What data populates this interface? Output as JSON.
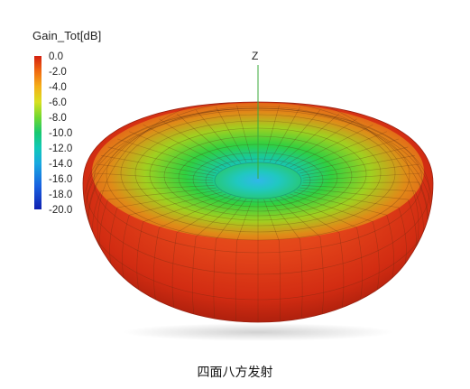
{
  "legend": {
    "title": "Gain_Tot[dB]",
    "ticks": [
      "0.0",
      "-2.0",
      "-4.0",
      "-6.0",
      "-8.0",
      "-10.0",
      "-12.0",
      "-14.0",
      "-16.0",
      "-18.0",
      "-20.0"
    ]
  },
  "axis": {
    "z_label": "Z"
  },
  "caption": "四面八方发射",
  "colors": {
    "max": "#d42010",
    "mid": "#18c870",
    "min": "#1020b0"
  }
}
